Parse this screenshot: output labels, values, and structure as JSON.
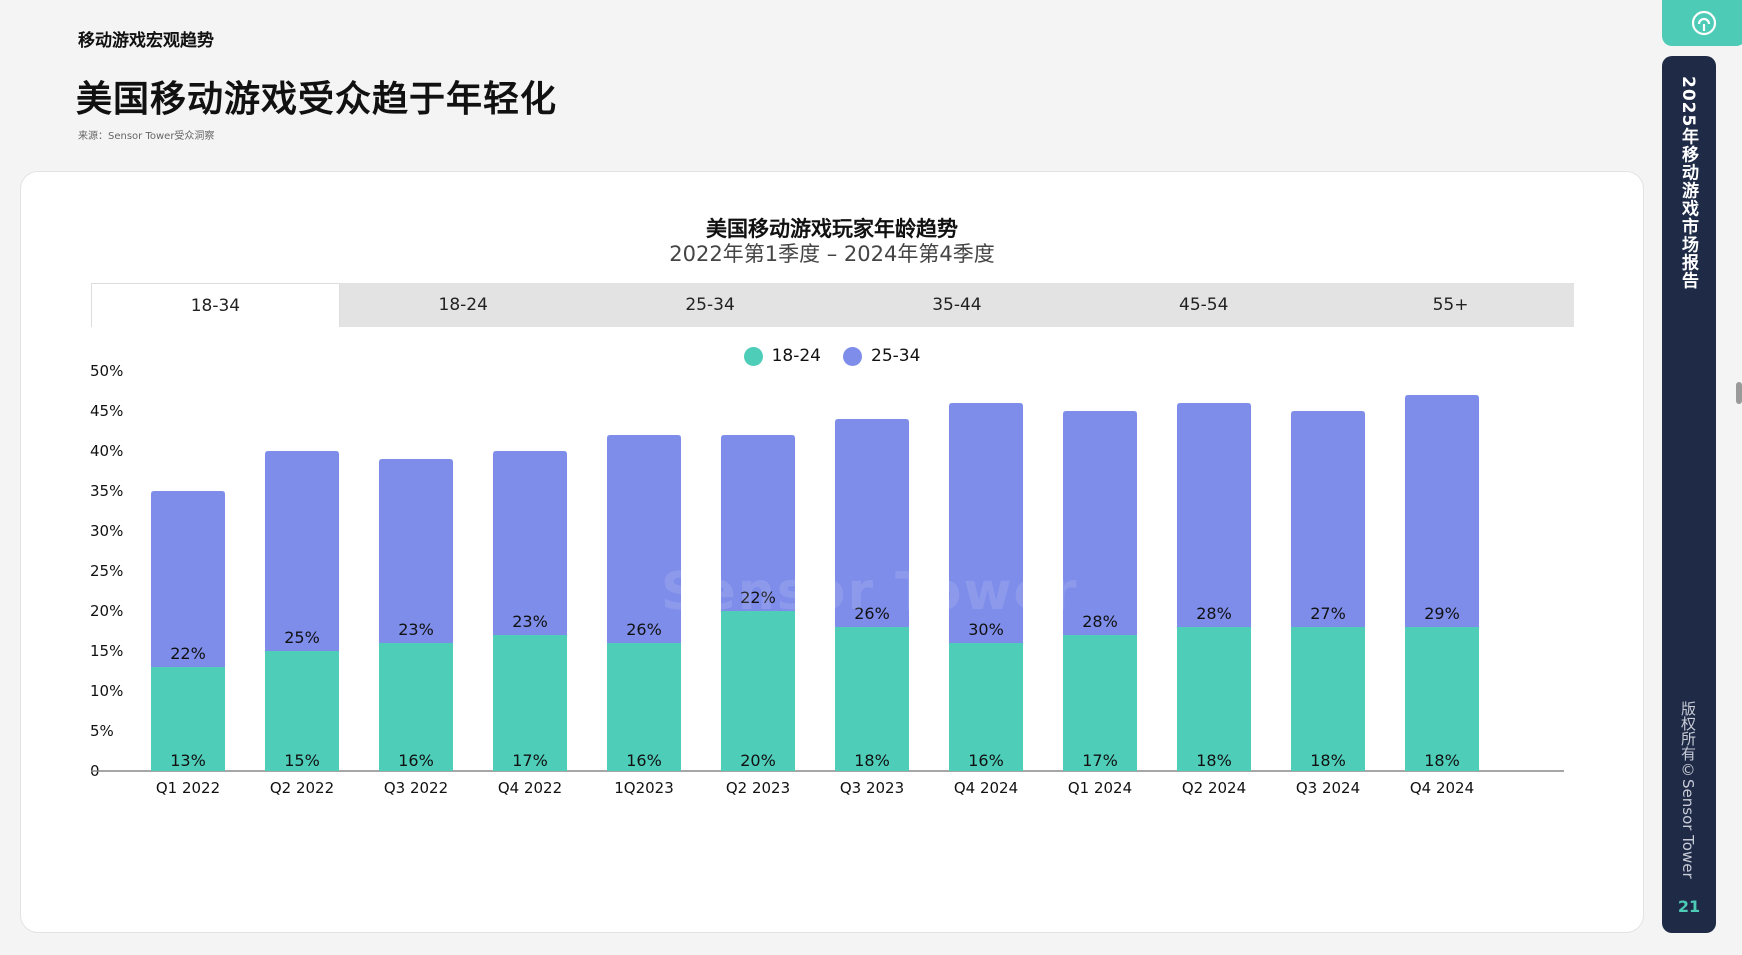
{
  "header": {
    "section_label": "移动游戏宏观趋势",
    "title": "美国移动游戏受众趋于年轻化",
    "source": "来源：Sensor Tower受众洞察"
  },
  "chart_card": {
    "watermark": "Sensor Tower"
  },
  "tabs": [
    {
      "label": "18-34",
      "active": true
    },
    {
      "label": "18-24",
      "active": false
    },
    {
      "label": "25-34",
      "active": false
    },
    {
      "label": "35-44",
      "active": false
    },
    {
      "label": "45-54",
      "active": false
    },
    {
      "label": "55+",
      "active": false
    }
  ],
  "side_panel": {
    "title": "2025年移动游戏市场报告",
    "copyright": "版权所有©Sensor Tower",
    "page_number": "21"
  },
  "colors": {
    "teal": "#4ecdb9",
    "purple": "#7e8dea",
    "navy": "#1e2a46"
  },
  "chart_data": {
    "type": "bar",
    "stacked": true,
    "title": "美国移动游戏玩家年龄趋势",
    "subtitle": "2022年第1季度 – 2024年第4季度",
    "categories": [
      "Q1 2022",
      "Q2 2022",
      "Q3 2022",
      "Q4 2022",
      "1Q2023",
      "Q2 2023",
      "Q3 2023",
      "Q4 2024",
      "Q1 2024",
      "Q2 2024",
      "Q3 2024",
      "Q4 2024"
    ],
    "series": [
      {
        "name": "18-24",
        "color": "#4ecdb9",
        "values": [
          13,
          15,
          16,
          17,
          16,
          20,
          18,
          16,
          17,
          18,
          18,
          18
        ],
        "labels": [
          "13%",
          "15%",
          "16%",
          "17%",
          "16%",
          "20%",
          "18%",
          "16%",
          "17%",
          "18%",
          "18%",
          "18%"
        ]
      },
      {
        "name": "25-34",
        "color": "#7e8dea",
        "values": [
          22,
          25,
          23,
          23,
          26,
          22,
          26,
          30,
          28,
          28,
          27,
          29
        ],
        "labels": [
          "22%",
          "25%",
          "23%",
          "23%",
          "26%",
          "22%",
          "26%",
          "30%",
          "28%",
          "28%",
          "27%",
          "29%"
        ]
      }
    ],
    "ylim": [
      0,
      50
    ],
    "yticks": [
      0,
      5,
      10,
      15,
      20,
      25,
      30,
      35,
      40,
      45,
      50
    ],
    "ytick_labels": [
      "0",
      "5%",
      "10%",
      "15%",
      "20%",
      "25%",
      "30%",
      "35%",
      "40%",
      "45%",
      "50%"
    ],
    "grid": false,
    "legend_position": "top-center"
  }
}
